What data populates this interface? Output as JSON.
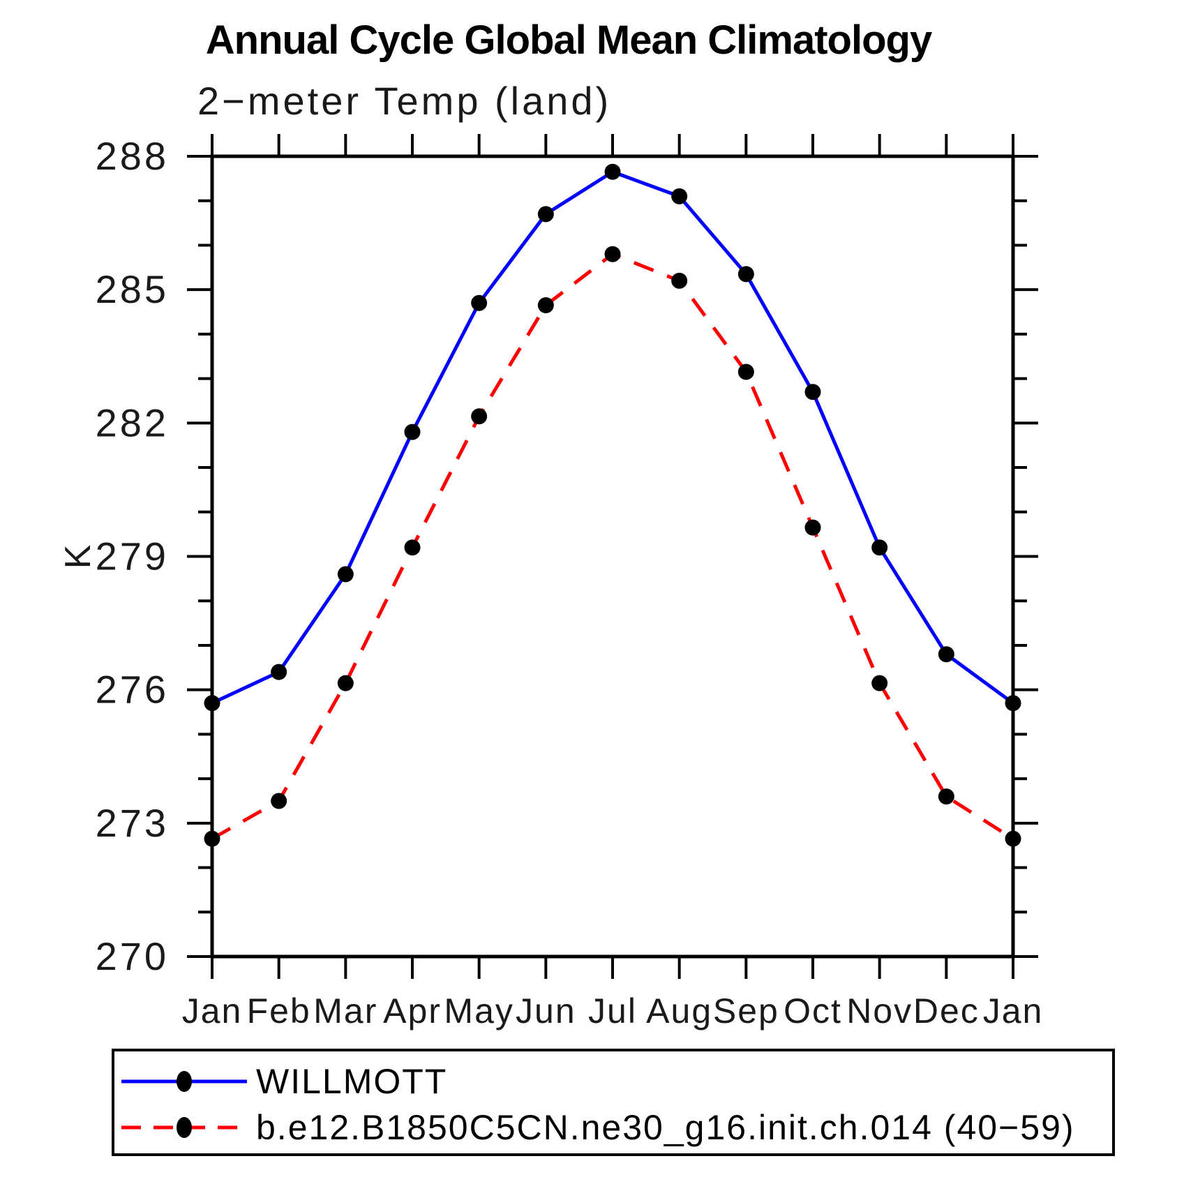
{
  "page": {
    "background": "#ffffff"
  },
  "header": {
    "title": "Annual Cycle Global Mean Climatology",
    "subtitle": "2−meter Temp (land)"
  },
  "chart_data": {
    "type": "line",
    "title": "Annual Cycle Global Mean Climatology",
    "subtitle": "2−meter Temp (land)",
    "xlabel": "",
    "ylabel": "K",
    "categories": [
      "Jan",
      "Feb",
      "Mar",
      "Apr",
      "May",
      "Jun",
      "Jul",
      "Aug",
      "Sep",
      "Oct",
      "Nov",
      "Dec",
      "Jan"
    ],
    "series": [
      {
        "name": "WILLMOTT",
        "color": "#0000ff",
        "line_style": "solid",
        "marker": "filled-circle",
        "marker_color": "#000000",
        "values": [
          275.7,
          276.4,
          278.6,
          281.8,
          284.7,
          286.7,
          287.65,
          287.1,
          285.35,
          282.7,
          279.2,
          276.8,
          275.7
        ]
      },
      {
        "name": "b.e12.B1850C5CN.ne30_g16.init.ch.014 (40−59)",
        "color": "#ff0000",
        "line_style": "dashed",
        "marker": "filled-circle",
        "marker_color": "#000000",
        "values": [
          272.65,
          273.5,
          276.15,
          279.2,
          282.15,
          284.65,
          285.8,
          285.2,
          283.15,
          279.65,
          276.15,
          273.6,
          272.65
        ]
      }
    ],
    "ylim": [
      270,
      288
    ],
    "yticks_major": [
      270,
      273,
      276,
      279,
      282,
      285,
      288
    ],
    "ytick_minor_step": 1,
    "grid": false,
    "legend_position": "bottom-left-box",
    "axis_color": "#000000"
  }
}
